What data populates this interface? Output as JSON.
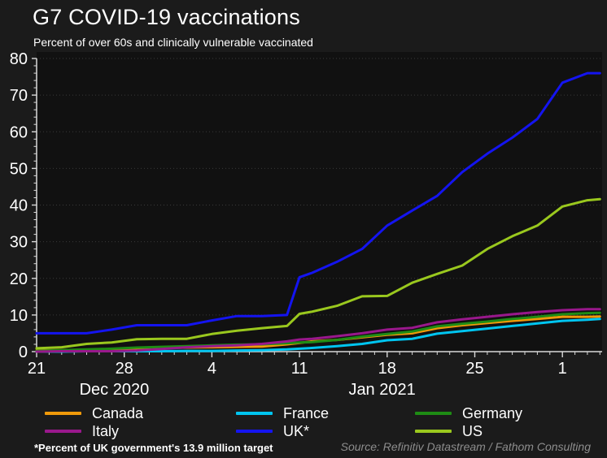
{
  "header": {
    "title": "G7 COVID-19 vaccinations",
    "subtitle": "Percent of over 60s and clinically vulnerable vaccinated"
  },
  "footer": {
    "footnote": "*Percent of UK government's 13.9 million target",
    "source": "Source: Refinitiv Datastream / Fathom Consulting"
  },
  "colors": {
    "background": "#1b1b1b",
    "plot_background": "#111111",
    "axis": "#d9d9d9",
    "gridline": "#3a3a3a",
    "text": "#ffffff",
    "source_text": "#8d8d8d"
  },
  "chart_data": {
    "type": "line",
    "title": "G7 COVID-19 vaccinations",
    "subtitle": "Percent of over 60s and clinically vulnerable vaccinated",
    "xlabel": "",
    "ylabel": "",
    "ylim": [
      0,
      80
    ],
    "grid": "horizontal-dotted",
    "legend_position": "bottom",
    "y_major_ticks": [
      0,
      10,
      20,
      30,
      40,
      50,
      60,
      70,
      80
    ],
    "x_tick_labels": [
      {
        "day": 0,
        "label": "21"
      },
      {
        "day": 7,
        "label": "28"
      },
      {
        "day": 14,
        "label": "4"
      },
      {
        "day": 21,
        "label": "11"
      },
      {
        "day": 28,
        "label": "18"
      },
      {
        "day": 35,
        "label": "25"
      },
      {
        "day": 42,
        "label": "1"
      }
    ],
    "month_labels": [
      {
        "day": 6.2,
        "label": "Dec 2020"
      },
      {
        "day": 27.6,
        "label": "Jan 2021"
      }
    ],
    "dates": [
      "Dec 21",
      "Dec 23",
      "Dec 25",
      "Dec 27",
      "Dec 29",
      "Dec 31",
      "Jan 2",
      "Jan 4",
      "Jan 6",
      "Jan 8",
      "Jan 10",
      "Jan 11",
      "Jan 12",
      "Jan 14",
      "Jan 16",
      "Jan 18",
      "Jan 20",
      "Jan 22",
      "Jan 24",
      "Jan 26",
      "Jan 28",
      "Jan 30",
      "Feb 1",
      "Feb 3",
      "Feb 4"
    ],
    "day_offsets": [
      0,
      2,
      4,
      6,
      8,
      10,
      12,
      14,
      16,
      18,
      20,
      21,
      22,
      24,
      26,
      28,
      30,
      32,
      34,
      36,
      38,
      40,
      42,
      44,
      45
    ],
    "series": [
      {
        "name": "Canada",
        "color": "#f09a0a",
        "values": [
          0.3,
          0.4,
          0.5,
          0.5,
          0.7,
          1.0,
          1.1,
          1.2,
          1.3,
          1.4,
          2.0,
          2.4,
          2.8,
          3.2,
          3.9,
          4.6,
          5.0,
          6.4,
          7.2,
          7.8,
          8.4,
          8.9,
          9.5,
          9.5,
          9.6
        ]
      },
      {
        "name": "France",
        "color": "#00c5f0",
        "values": [
          0.0,
          0.0,
          0.1,
          0.1,
          0.1,
          0.1,
          0.2,
          0.2,
          0.3,
          0.4,
          0.6,
          0.8,
          1.0,
          1.5,
          2.1,
          3.1,
          3.5,
          4.9,
          5.6,
          6.3,
          7.0,
          7.7,
          8.4,
          8.7,
          8.9
        ]
      },
      {
        "name": "Germany",
        "color": "#1e8c14",
        "values": [
          0.2,
          0.4,
          0.6,
          0.8,
          1.1,
          1.3,
          1.5,
          1.7,
          1.9,
          2.0,
          2.3,
          2.5,
          2.6,
          3.2,
          4.1,
          4.8,
          5.5,
          6.9,
          7.6,
          8.2,
          8.9,
          9.5,
          10.2,
          10.5,
          10.6
        ]
      },
      {
        "name": "Italy",
        "color": "#99188c",
        "values": [
          0.0,
          0.1,
          0.1,
          0.1,
          0.3,
          0.7,
          1.2,
          1.5,
          1.7,
          2.1,
          2.8,
          3.3,
          3.5,
          4.2,
          5.0,
          6.0,
          6.5,
          8.0,
          8.8,
          9.5,
          10.2,
          10.8,
          11.3,
          11.6,
          11.6
        ]
      },
      {
        "name": "UK*",
        "color": "#1414f0",
        "values": [
          5.0,
          5.0,
          5.0,
          6.0,
          7.2,
          7.2,
          7.2,
          8.5,
          9.7,
          9.7,
          10.0,
          20.3,
          21.5,
          24.5,
          28.0,
          34.4,
          38.5,
          42.5,
          49.0,
          54.0,
          58.4,
          63.5,
          73.4,
          76.0,
          76.0
        ]
      },
      {
        "name": "US",
        "color": "#9ac81e",
        "values": [
          0.9,
          1.2,
          2.1,
          2.5,
          3.4,
          3.5,
          3.5,
          4.8,
          5.7,
          6.4,
          7.0,
          10.3,
          10.9,
          12.5,
          15.1,
          15.2,
          18.8,
          21.2,
          23.5,
          28.0,
          31.5,
          34.4,
          39.6,
          41.3,
          41.6
        ]
      }
    ]
  }
}
